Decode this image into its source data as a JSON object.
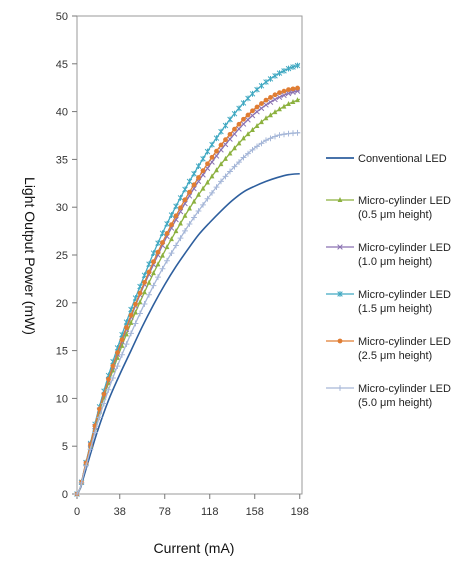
{
  "chart_data": {
    "type": "line",
    "title": "",
    "xlabel": "Current (mA)",
    "ylabel": "Light Output Power (mW)",
    "xlim": [
      0,
      200
    ],
    "ylim": [
      0,
      50
    ],
    "x_tick_labels": [
      "0",
      "38",
      "78",
      "118",
      "158",
      "198"
    ],
    "x_tick_values": [
      0,
      38,
      78,
      118,
      158,
      198
    ],
    "y_ticks": [
      0,
      5,
      10,
      15,
      20,
      25,
      30,
      35,
      40,
      45,
      50
    ],
    "grid": "none",
    "legend_position": "right",
    "x": [
      0,
      3,
      6,
      10,
      18,
      28,
      38,
      48,
      58,
      68,
      78,
      88,
      98,
      108,
      118,
      128,
      138,
      148,
      158,
      168,
      178,
      188,
      198
    ],
    "series": [
      {
        "name": "Conventional LED",
        "color": "#2e5f9e",
        "marker": "none",
        "values": [
          0,
          0.6,
          1.8,
          3.4,
          6.5,
          9.8,
          12.5,
          15.0,
          17.5,
          19.8,
          21.9,
          23.8,
          25.5,
          27.1,
          28.4,
          29.6,
          30.7,
          31.6,
          32.2,
          32.7,
          33.1,
          33.4,
          33.5
        ]
      },
      {
        "name": "Micro-cylinder LED (0.5 μm height)",
        "color": "#8cb13f",
        "marker": "triangle",
        "values": [
          0,
          0.7,
          2.2,
          4.1,
          7.8,
          11.6,
          14.9,
          17.9,
          20.6,
          23.1,
          25.4,
          27.5,
          29.5,
          31.3,
          32.9,
          34.5,
          35.9,
          37.2,
          38.3,
          39.3,
          40.1,
          40.8,
          41.3
        ]
      },
      {
        "name": "Micro-cylinder LED (1.0 μm height)",
        "color": "#8a72b2",
        "marker": "x",
        "values": [
          0,
          0.7,
          2.3,
          4.2,
          8.0,
          11.9,
          15.3,
          18.5,
          21.4,
          24.0,
          26.5,
          28.7,
          30.8,
          32.7,
          34.4,
          36.0,
          37.4,
          38.7,
          39.8,
          40.7,
          41.4,
          41.9,
          42.2
        ]
      },
      {
        "name": "Micro-cylinder LED (1.5 μm height)",
        "color": "#42a9c2",
        "marker": "star",
        "values": [
          0,
          0.7,
          2.3,
          4.3,
          8.3,
          12.4,
          16.0,
          19.3,
          22.3,
          25.2,
          27.8,
          30.1,
          32.3,
          34.3,
          36.2,
          37.9,
          39.5,
          40.9,
          42.1,
          43.1,
          43.9,
          44.5,
          44.9
        ]
      },
      {
        "name": "Micro-cylinder LED (2.5 μm height)",
        "color": "#e07d33",
        "marker": "circle",
        "values": [
          0,
          0.7,
          2.3,
          4.2,
          8.1,
          12.0,
          15.5,
          18.7,
          21.6,
          24.3,
          26.8,
          29.1,
          31.2,
          33.1,
          34.9,
          36.5,
          37.9,
          39.2,
          40.3,
          41.2,
          41.9,
          42.3,
          42.5
        ]
      },
      {
        "name": "Micro-cylinder LED (5.0 μm height)",
        "color": "#a6b7d8",
        "marker": "plus",
        "values": [
          0,
          0.7,
          2.1,
          3.8,
          7.3,
          10.9,
          14.0,
          16.8,
          19.4,
          21.8,
          24.0,
          26.0,
          27.9,
          29.6,
          31.2,
          32.7,
          34.0,
          35.2,
          36.2,
          37.0,
          37.5,
          37.7,
          37.8
        ]
      }
    ]
  }
}
